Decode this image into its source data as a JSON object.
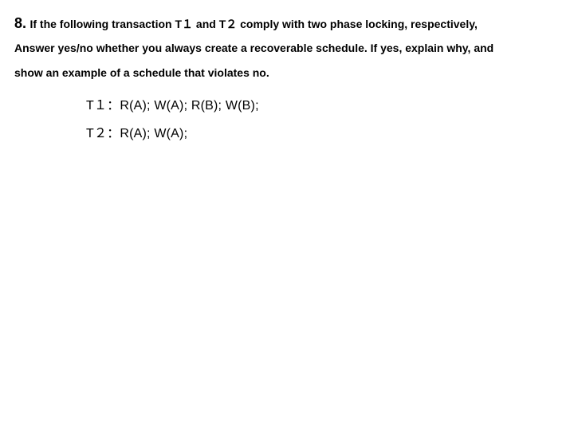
{
  "question": {
    "number": "8.",
    "line1": "If the following transaction T１ and T２ comply with two phase locking, respectively,",
    "line2": "Answer yes/no whether you always create a recoverable schedule. If yes, explain why, and",
    "line3": "show an example of a schedule that violates no."
  },
  "transactions": [
    {
      "label": "T１：",
      "ops": "R(A); W(A); R(B); W(B);"
    },
    {
      "label": "T２：",
      "ops": "R(A); W(A);"
    }
  ],
  "colors": {
    "background": "#ffffff",
    "text": "#000000"
  }
}
